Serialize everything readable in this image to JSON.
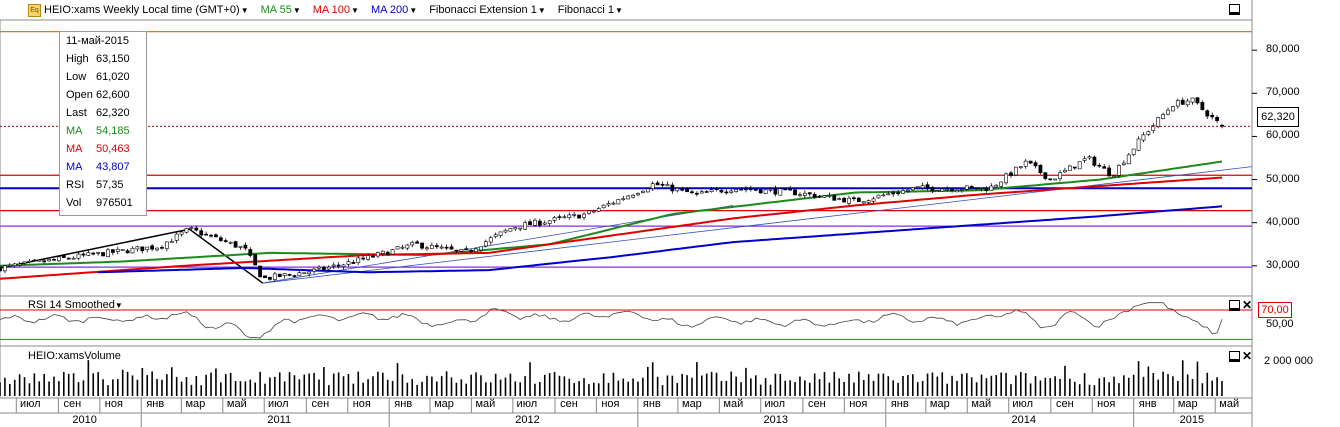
{
  "header": {
    "logo_text": "Eq",
    "symbol_title": "HEIO:xams Weekly Local time (GMT+0)",
    "indicators": [
      {
        "label": "MA 55",
        "color": "#1a8a1a"
      },
      {
        "label": "MA 100",
        "color": "#e00000"
      },
      {
        "label": "MA 200",
        "color": "#0000cc"
      },
      {
        "label": "Fibonacci Extension 1",
        "color": "#000000"
      },
      {
        "label": "Fibonacci 1",
        "color": "#000000"
      }
    ]
  },
  "info_box": {
    "date": "11-май-2015",
    "rows": [
      {
        "k": "High",
        "v": "63,150",
        "color": "#000000"
      },
      {
        "k": "Low",
        "v": "61,020",
        "color": "#000000"
      },
      {
        "k": "Open",
        "v": "62,600",
        "color": "#000000"
      },
      {
        "k": "Last",
        "v": "62,320",
        "color": "#000000"
      },
      {
        "k": "MA",
        "v": "54,185",
        "color": "#1a8a1a"
      },
      {
        "k": "MA",
        "v": "50,463",
        "color": "#e00000"
      },
      {
        "k": "MA",
        "v": "43,807",
        "color": "#0000cc"
      },
      {
        "k": "RSI",
        "v": "57,35",
        "color": "#000000"
      },
      {
        "k": "Vol",
        "v": "976501",
        "color": "#000000"
      }
    ]
  },
  "last_price_label": "62,320",
  "rsi_pane": {
    "title": "RSI 14 Smoothed",
    "level_label": "70,00",
    "tick_label": "50,00"
  },
  "volume_pane": {
    "title": "HEIO:xamsVolume",
    "tick_label": "2 000 000"
  },
  "x_months": [
    "июл",
    "сен",
    "ноя",
    "янв",
    "мар",
    "май",
    "июл",
    "сен",
    "ноя",
    "янв",
    "мар",
    "май",
    "июл",
    "сен",
    "ноя",
    "янв",
    "мар",
    "май",
    "июл",
    "сен",
    "ноя",
    "янв",
    "мар",
    "май",
    "июл",
    "сен",
    "ноя",
    "янв",
    "мар",
    "май"
  ],
  "x_years": [
    "2010",
    "2011",
    "2012",
    "2013",
    "2014",
    "2015"
  ],
  "chart_data": {
    "type": "candlestick",
    "title": "HEIO:xams Weekly",
    "x_range": [
      "2010-06",
      "2015-05"
    ],
    "ylim": [
      23000,
      87000
    ],
    "y_ticks": [
      "30,000",
      "40,000",
      "50,000",
      "60,000",
      "70,000",
      "80,000"
    ],
    "close_anchors": [
      {
        "x": 0,
        "y": 29500
      },
      {
        "x": 0.06,
        "y": 32000
      },
      {
        "x": 0.13,
        "y": 34500
      },
      {
        "x": 0.155,
        "y": 38500
      },
      {
        "x": 0.2,
        "y": 34000
      },
      {
        "x": 0.215,
        "y": 27000
      },
      {
        "x": 0.26,
        "y": 29000
      },
      {
        "x": 0.29,
        "y": 31000
      },
      {
        "x": 0.34,
        "y": 35000
      },
      {
        "x": 0.38,
        "y": 33000
      },
      {
        "x": 0.42,
        "y": 39000
      },
      {
        "x": 0.48,
        "y": 42000
      },
      {
        "x": 0.535,
        "y": 49000
      },
      {
        "x": 0.57,
        "y": 46500
      },
      {
        "x": 0.6,
        "y": 48000
      },
      {
        "x": 0.65,
        "y": 47000
      },
      {
        "x": 0.7,
        "y": 45000
      },
      {
        "x": 0.75,
        "y": 48000
      },
      {
        "x": 0.81,
        "y": 48000
      },
      {
        "x": 0.84,
        "y": 54000
      },
      {
        "x": 0.86,
        "y": 50000
      },
      {
        "x": 0.89,
        "y": 55000
      },
      {
        "x": 0.91,
        "y": 51000
      },
      {
        "x": 0.935,
        "y": 60000
      },
      {
        "x": 0.96,
        "y": 67500
      },
      {
        "x": 0.975,
        "y": 68500
      },
      {
        "x": 1.0,
        "y": 62320
      }
    ],
    "ma_series": [
      {
        "name": "MA 55",
        "color": "#1a8a1a",
        "anchors": [
          {
            "x": 0,
            "y": 30000
          },
          {
            "x": 0.1,
            "y": 31000
          },
          {
            "x": 0.22,
            "y": 33000
          },
          {
            "x": 0.35,
            "y": 32500
          },
          {
            "x": 0.45,
            "y": 35000
          },
          {
            "x": 0.55,
            "y": 42000
          },
          {
            "x": 0.7,
            "y": 47000
          },
          {
            "x": 0.8,
            "y": 47500
          },
          {
            "x": 0.9,
            "y": 50000
          },
          {
            "x": 1.0,
            "y": 54185
          }
        ]
      },
      {
        "name": "MA 100",
        "color": "#e00000",
        "anchors": [
          {
            "x": 0,
            "y": 27000
          },
          {
            "x": 0.15,
            "y": 30000
          },
          {
            "x": 0.3,
            "y": 32500
          },
          {
            "x": 0.4,
            "y": 33000
          },
          {
            "x": 0.5,
            "y": 37000
          },
          {
            "x": 0.6,
            "y": 41000
          },
          {
            "x": 0.7,
            "y": 44000
          },
          {
            "x": 0.8,
            "y": 46500
          },
          {
            "x": 0.9,
            "y": 48500
          },
          {
            "x": 1.0,
            "y": 50463
          }
        ]
      },
      {
        "name": "MA 200",
        "color": "#0000cc",
        "anchors": [
          {
            "x": 0.08,
            "y": 28500
          },
          {
            "x": 0.2,
            "y": 29500
          },
          {
            "x": 0.3,
            "y": 28500
          },
          {
            "x": 0.4,
            "y": 29000
          },
          {
            "x": 0.5,
            "y": 32000
          },
          {
            "x": 0.6,
            "y": 35500
          },
          {
            "x": 0.7,
            "y": 37500
          },
          {
            "x": 0.8,
            "y": 39500
          },
          {
            "x": 0.9,
            "y": 41500
          },
          {
            "x": 1.0,
            "y": 43807
          }
        ]
      }
    ],
    "horizontal_levels": [
      {
        "price": 84300,
        "color": "#e07030"
      },
      {
        "price": 51000,
        "color": "#e00000"
      },
      {
        "price": 48000,
        "color": "#0000cc"
      },
      {
        "price": 42800,
        "color": "#e00000"
      },
      {
        "price": 39200,
        "color": "#8a2be2"
      },
      {
        "price": 29700,
        "color": "#8a2be2"
      }
    ],
    "fib_extension_points": [
      {
        "x": 0,
        "y": 29500
      },
      {
        "x": 0.155,
        "y": 38500
      },
      {
        "x": 0.215,
        "y": 26000
      }
    ],
    "trend_line": [
      {
        "x": 0.215,
        "y": 26000
      },
      {
        "x": 1.0,
        "y": 53000
      }
    ],
    "last": 62320,
    "rsi": {
      "level": 70,
      "tick": 50,
      "last": 57.35
    },
    "volume": {
      "tick": 2000000,
      "last": 976501
    }
  }
}
